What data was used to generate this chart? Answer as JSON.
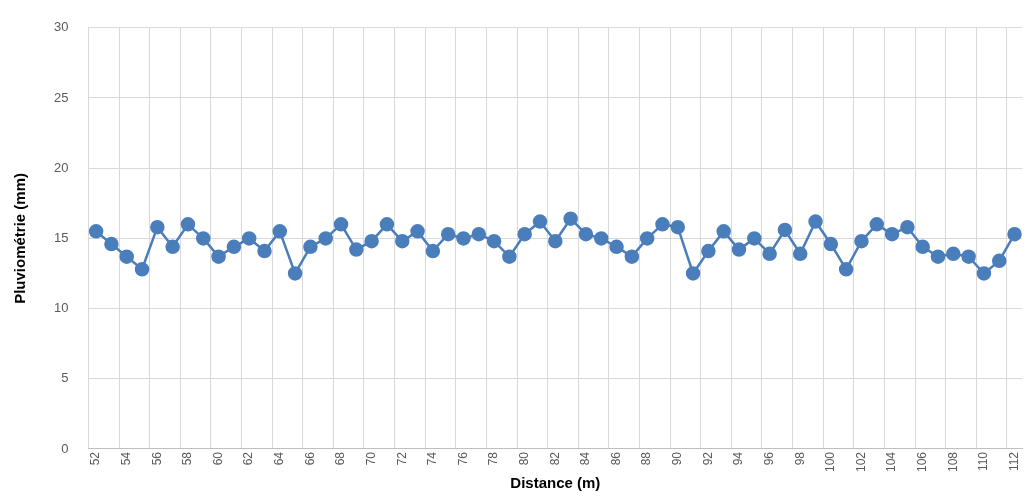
{
  "chart_data": {
    "type": "line",
    "xlabel": "Distance (m)",
    "ylabel": "Pluviométrie (mm)",
    "categories": [
      "52",
      null,
      "54",
      null,
      "56",
      null,
      "58",
      null,
      "60",
      null,
      "62",
      null,
      "64",
      null,
      "66",
      null,
      "68",
      null,
      "70",
      null,
      "72",
      null,
      "74",
      null,
      "76",
      null,
      "78",
      null,
      "80",
      null,
      "82",
      null,
      "84",
      null,
      "86",
      null,
      "88",
      null,
      "90",
      null,
      "92",
      null,
      "94",
      null,
      "96",
      null,
      "98",
      null,
      "100",
      null,
      "102",
      null,
      "104",
      null,
      "106",
      null,
      "108",
      null,
      "110",
      null,
      "112"
    ],
    "series": [
      {
        "color": "#4a7ebb",
        "values": [
          15.5,
          14.6,
          13.7,
          12.8,
          15.8,
          14.4,
          16.0,
          15.0,
          13.7,
          14.4,
          15.0,
          14.1,
          15.5,
          12.5,
          14.4,
          15.0,
          16.0,
          14.2,
          14.8,
          16.0,
          14.8,
          15.5,
          14.1,
          15.3,
          15.0,
          15.3,
          14.8,
          13.7,
          15.3,
          16.2,
          14.8,
          16.4,
          15.3,
          15.0,
          14.4,
          13.7,
          15.0,
          16.0,
          15.8,
          12.5,
          14.1,
          15.5,
          14.2,
          15.0,
          13.9,
          15.6,
          13.9,
          16.2,
          14.6,
          12.8,
          14.8,
          16.0,
          15.3,
          15.8,
          14.4,
          13.7,
          13.9,
          13.7,
          12.5,
          13.4,
          15.3
        ]
      }
    ],
    "ylim": [
      0,
      30
    ],
    "yticks": [
      0,
      5,
      10,
      15,
      20,
      25,
      30
    ],
    "grid": true,
    "marker": "circle",
    "line_style": "solid",
    "legend": false
  }
}
